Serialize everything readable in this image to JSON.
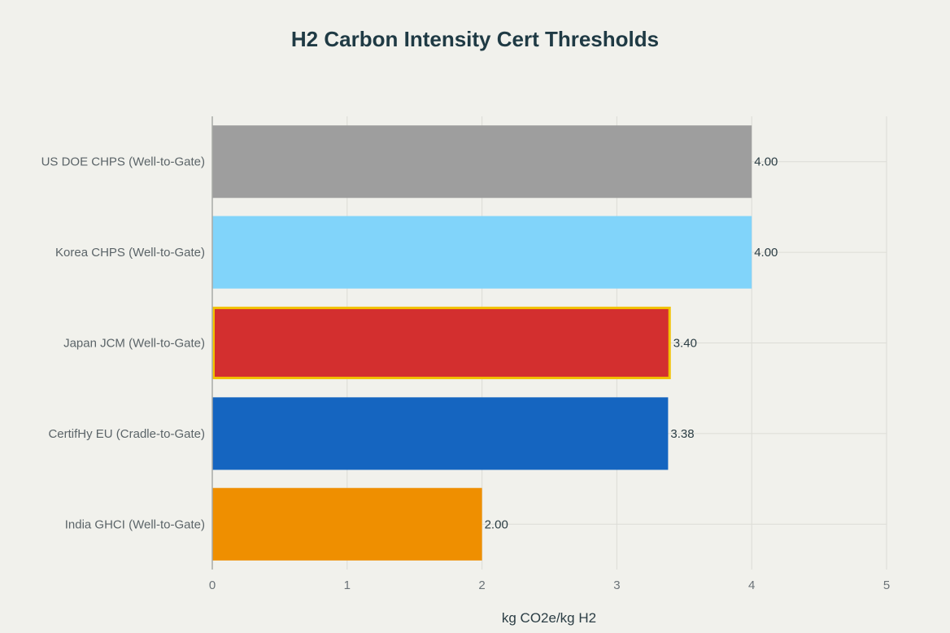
{
  "chart_data": {
    "type": "bar",
    "orientation": "horizontal",
    "title": "H2 Carbon Intensity Cert Thresholds",
    "xlabel": "kg CO2e/kg H2",
    "ylabel": "",
    "xlim": [
      0,
      5
    ],
    "x_ticks": [
      "0",
      "1",
      "2",
      "3",
      "4",
      "5"
    ],
    "grid": true,
    "categories": [
      "US DOE CHPS (Well-to-Gate)",
      "Korea CHPS (Well-to-Gate)",
      "Japan JCM (Well-to-Gate)",
      "CertifHy EU (Cradle-to-Gate)",
      "India GHCI (Well-to-Gate)"
    ],
    "values": [
      4.0,
      4.0,
      3.4,
      3.38,
      2.0
    ],
    "value_labels": [
      "4.00",
      "4.00",
      "3.40",
      "3.38",
      "2.00"
    ],
    "colors": [
      "#9e9e9e",
      "#81d4fa",
      "#d32f2f",
      "#1565c0",
      "#ef8f00"
    ],
    "highlight": {
      "category": "Japan JCM (Well-to-Gate)",
      "outline_color": "#f2c200"
    }
  }
}
